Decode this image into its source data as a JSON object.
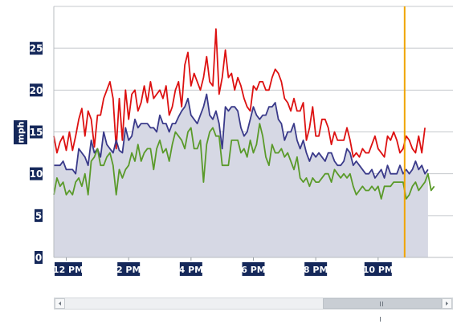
{
  "chart_data": {
    "type": "area",
    "title": "",
    "xlabel": "",
    "ylabel": "mph",
    "ylim": [
      0,
      30
    ],
    "yticks": [
      "0",
      "5",
      "10",
      "15",
      "20",
      "25"
    ],
    "xlim_hours": [
      11.6,
      24.4
    ],
    "xticks": [
      {
        "label": "12 PM",
        "hour": 12
      },
      {
        "label": "2 PM",
        "hour": 14
      },
      {
        "label": "4 PM",
        "hour": 16
      },
      {
        "label": "6 PM",
        "hour": 18
      },
      {
        "label": "8 PM",
        "hour": 20
      },
      {
        "label": "10 PM",
        "hour": 22
      }
    ],
    "grid": true,
    "legend": "none",
    "cursor_hour": 22.85,
    "cursor_color": "#f0a500",
    "x_start_hour": 11.6,
    "x_step_hours": 0.1,
    "series": [
      {
        "color": "#dd1111",
        "kind": "line",
        "values": [
          14.5,
          12.5,
          13.8,
          14.5,
          12.8,
          15,
          12.8,
          14.5,
          16.5,
          17.8,
          14.5,
          17.5,
          16.5,
          13.2,
          17,
          17,
          19,
          20,
          21,
          19,
          13,
          19,
          14,
          20,
          16.5,
          19.5,
          20,
          17.5,
          18.5,
          20.5,
          18.5,
          21,
          19,
          19.5,
          20,
          19,
          20.5,
          17,
          18,
          20,
          21,
          18,
          23,
          24.5,
          20.5,
          22,
          21,
          20,
          21.5,
          24,
          21,
          20.5,
          27.3,
          19.5,
          21.5,
          24.8,
          21.5,
          22,
          20,
          21.5,
          20.5,
          19,
          18,
          17.5,
          20.5,
          20,
          21,
          21,
          20,
          20,
          21.5,
          22.5,
          22,
          21,
          19,
          18.5,
          17.5,
          19,
          17.5,
          17.5,
          18.5,
          14,
          15.5,
          18,
          14.5,
          14.5,
          16.5,
          16.5,
          15.5,
          13.5,
          15,
          14,
          14,
          14,
          15.5,
          14,
          12,
          12.5,
          12,
          13,
          12.5,
          12.5,
          13.5,
          14.5,
          13,
          12.5,
          12,
          14.5,
          14,
          15,
          14,
          12.5,
          13,
          14.5,
          14,
          13,
          12.5,
          14.5,
          12.5,
          15.5
        ]
      },
      {
        "color": "#3a3a8a",
        "kind": "area",
        "fill": "#d6d8e4",
        "values": [
          11,
          11,
          11,
          11.5,
          10.5,
          10.5,
          10.5,
          10,
          13,
          12.5,
          12,
          11,
          14,
          12.5,
          13,
          12,
          15,
          13.5,
          13,
          12.5,
          14,
          12.8,
          12.5,
          15.5,
          14,
          14.5,
          16.5,
          15.5,
          16,
          16,
          16,
          15.5,
          15.5,
          15,
          17,
          16,
          16,
          15,
          16,
          16,
          16.8,
          17.5,
          18,
          19,
          17,
          16.5,
          16,
          17,
          18,
          19.5,
          17,
          16.5,
          17.5,
          16,
          13,
          18,
          17.5,
          18,
          18,
          17.5,
          15.5,
          14.5,
          15,
          16.5,
          18,
          17,
          16.5,
          17,
          17,
          18,
          18,
          18.5,
          16.5,
          16,
          14,
          15,
          15,
          16,
          14,
          13,
          14,
          12.5,
          11.5,
          12.5,
          12,
          12.5,
          12,
          11.5,
          12.5,
          12.5,
          11.5,
          11,
          11,
          11.5,
          13,
          12.5,
          11,
          11.5,
          11,
          10.5,
          10,
          10,
          10.5,
          9.5,
          10,
          10.5,
          9.5,
          11,
          10,
          10,
          10,
          11,
          10,
          10.5,
          10,
          10.5,
          11.5,
          10.5,
          11,
          10,
          10.5
        ]
      },
      {
        "color": "#5a9a2a",
        "kind": "line",
        "values": [
          7.5,
          9.5,
          8.5,
          9,
          7.5,
          8,
          7.5,
          9,
          9.5,
          8.5,
          10,
          7.5,
          11.5,
          12,
          13,
          11,
          11,
          12,
          12.5,
          11,
          7.5,
          10.5,
          9.5,
          10.5,
          11,
          12.5,
          11.5,
          13.5,
          11.5,
          12.5,
          13,
          13,
          10.5,
          13,
          14,
          12.5,
          13,
          11.5,
          13.5,
          15,
          14.5,
          14,
          13,
          15,
          15.5,
          13,
          13,
          14,
          9,
          13.5,
          15,
          15.5,
          14.5,
          14.5,
          11,
          11,
          11,
          14,
          14,
          14,
          12.5,
          13,
          12,
          14,
          12.5,
          13.5,
          16,
          14.5,
          12,
          11,
          13.5,
          12.5,
          12.5,
          13,
          12,
          12.5,
          11.5,
          10.5,
          12,
          9.5,
          9,
          9.5,
          8.5,
          9.5,
          9,
          9,
          9.5,
          10,
          10,
          9,
          10.5,
          10,
          9.5,
          10,
          9.5,
          10,
          8.5,
          7.5,
          8,
          8.5,
          8,
          8,
          8.5,
          8,
          8.5,
          7,
          8.5,
          8.5,
          8.5,
          9,
          9,
          9,
          9,
          7,
          7.5,
          8.5,
          9,
          8,
          8.5,
          9,
          10,
          8,
          8.5
        ]
      }
    ]
  },
  "scrollbar": {
    "left_arrow": "◂",
    "right_arrow": "▸",
    "thumb_icon": "grip-icon"
  }
}
